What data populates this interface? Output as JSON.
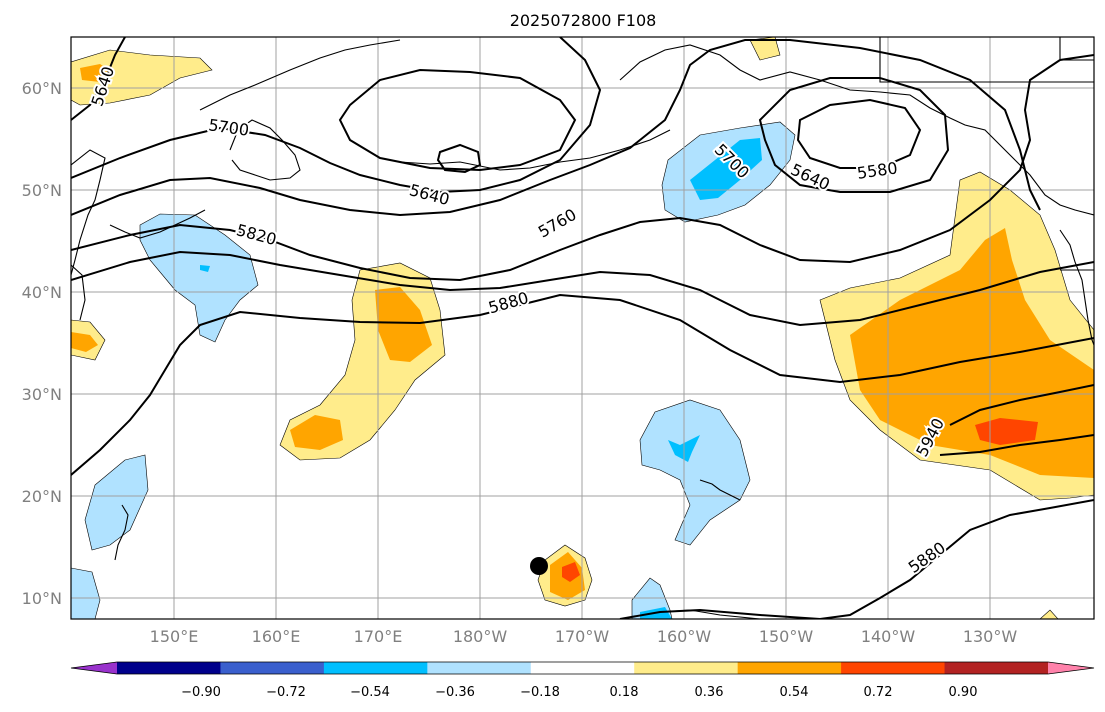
{
  "title": "2025072800 F108",
  "map": {
    "lat_ticks": [
      "10°N",
      "20°N",
      "30°N",
      "40°N",
      "50°N",
      "60°N"
    ],
    "lon_ticks": [
      "150°E",
      "160°E",
      "170°E",
      "180°W",
      "170°W",
      "160°W",
      "150°W",
      "140°W",
      "130°W"
    ],
    "contour_labels": [
      "5640",
      "5700",
      "5640",
      "5820",
      "5760",
      "5700",
      "5640",
      "5580",
      "5880",
      "5940",
      "5880"
    ],
    "marker": "point-marker"
  },
  "colorbar": {
    "ticks": [
      "−0.90",
      "−0.72",
      "−0.54",
      "−0.36",
      "−0.18",
      "0.18",
      "0.36",
      "0.54",
      "0.72",
      "0.90"
    ],
    "colors": [
      "#9932cc",
      "#00008b",
      "#3a5fcd",
      "#00bfff",
      "#b0e2ff",
      "#ffffff",
      "#ffec8b",
      "#ffa500",
      "#ff4500",
      "#b22222",
      "#ff82ab"
    ]
  },
  "colors": {
    "fill_light_yellow": "#ffec8b",
    "fill_orange": "#ffa500",
    "fill_red_orange": "#ff4500",
    "fill_light_blue": "#b0e2ff",
    "fill_deep_sky_blue": "#00bfff",
    "grid": "#a0a0a0",
    "contour": "#000000"
  }
}
